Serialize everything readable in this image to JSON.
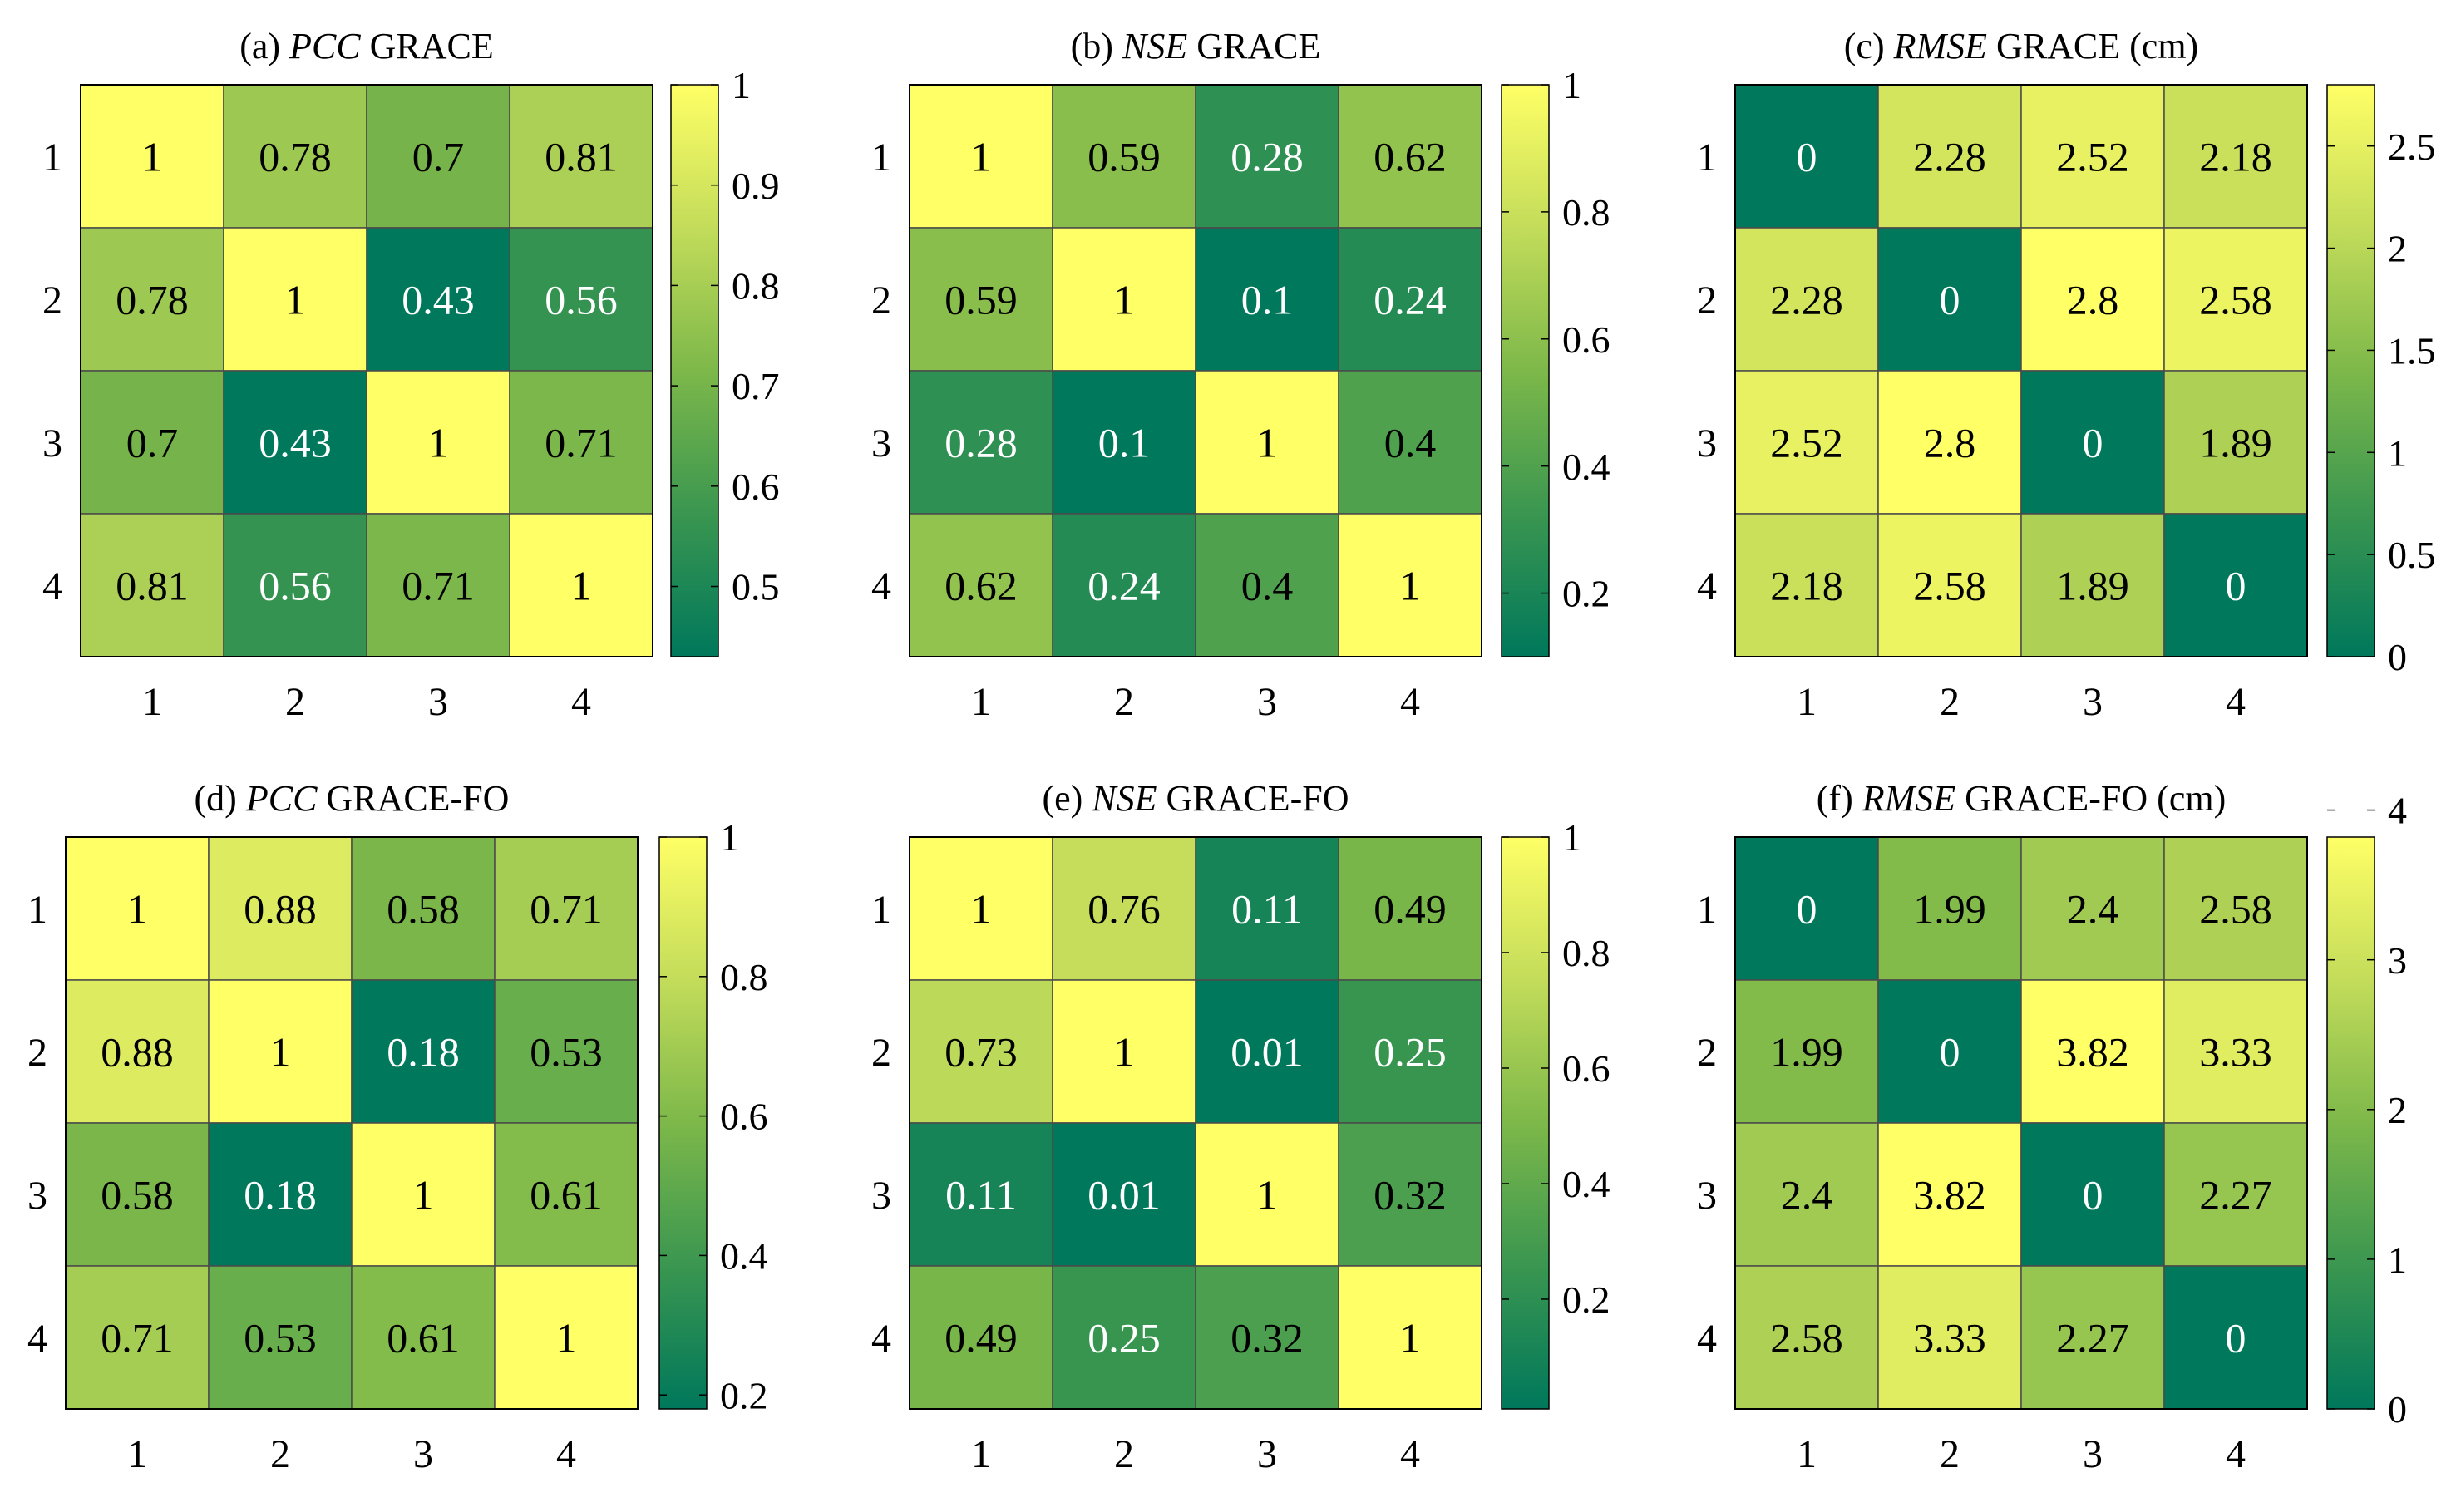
{
  "chart_data": [
    {
      "type": "heatmap",
      "panel": "(a)",
      "metric": "PCC",
      "suffix": "GRACE",
      "x_labels": [
        "1",
        "2",
        "3",
        "4"
      ],
      "y_labels": [
        "1",
        "2",
        "3",
        "4"
      ],
      "matrix": [
        [
          1,
          0.78,
          0.7,
          0.81
        ],
        [
          0.78,
          1,
          0.43,
          0.56
        ],
        [
          0.7,
          0.43,
          1,
          0.71
        ],
        [
          0.81,
          0.56,
          0.71,
          1
        ]
      ],
      "cell_labels": [
        [
          "1",
          "0.78",
          "0.7",
          "0.81"
        ],
        [
          "0.78",
          "1",
          "0.43",
          "0.56"
        ],
        [
          "0.7",
          "0.43",
          "1",
          "0.71"
        ],
        [
          "0.81",
          "0.56",
          "0.71",
          "1"
        ]
      ],
      "clim": [
        0.43,
        1
      ],
      "colorbar_ticks": [
        0.5,
        0.6,
        0.7,
        0.8,
        0.9,
        1
      ],
      "colorbar_tick_labels": [
        "0.5",
        "0.6",
        "0.7",
        "0.8",
        "0.9",
        "1"
      ]
    },
    {
      "type": "heatmap",
      "panel": "(b)",
      "metric": "NSE",
      "suffix": "GRACE",
      "x_labels": [
        "1",
        "2",
        "3",
        "4"
      ],
      "y_labels": [
        "1",
        "2",
        "3",
        "4"
      ],
      "matrix": [
        [
          1,
          0.59,
          0.28,
          0.62
        ],
        [
          0.59,
          1,
          0.1,
          0.24
        ],
        [
          0.28,
          0.1,
          1,
          0.4
        ],
        [
          0.62,
          0.24,
          0.4,
          1
        ]
      ],
      "cell_labels": [
        [
          "1",
          "0.59",
          "0.28",
          "0.62"
        ],
        [
          "0.59",
          "1",
          "0.1",
          "0.24"
        ],
        [
          "0.28",
          "0.1",
          "1",
          "0.4"
        ],
        [
          "0.62",
          "0.24",
          "0.4",
          "1"
        ]
      ],
      "clim": [
        0.1,
        1
      ],
      "colorbar_ticks": [
        0.2,
        0.4,
        0.6,
        0.8,
        1
      ],
      "colorbar_tick_labels": [
        "0.2",
        "0.4",
        "0.6",
        "0.8",
        "1"
      ]
    },
    {
      "type": "heatmap",
      "panel": "(c)",
      "metric": "RMSE",
      "suffix": "GRACE (cm)",
      "x_labels": [
        "1",
        "2",
        "3",
        "4"
      ],
      "y_labels": [
        "1",
        "2",
        "3",
        "4"
      ],
      "matrix": [
        [
          0,
          2.28,
          2.52,
          2.18
        ],
        [
          2.28,
          0,
          2.8,
          2.58
        ],
        [
          2.52,
          2.8,
          0,
          1.89
        ],
        [
          2.18,
          2.58,
          1.89,
          0
        ]
      ],
      "cell_labels": [
        [
          "0",
          "2.28",
          "2.52",
          "2.18"
        ],
        [
          "2.28",
          "0",
          "2.8",
          "2.58"
        ],
        [
          "2.52",
          "2.8",
          "0",
          "1.89"
        ],
        [
          "2.18",
          "2.58",
          "1.89",
          "0"
        ]
      ],
      "clim": [
        0,
        2.8
      ],
      "colorbar_ticks": [
        0,
        0.5,
        1,
        1.5,
        2,
        2.5
      ],
      "colorbar_tick_labels": [
        "0",
        "0.5",
        "1",
        "1.5",
        "2",
        "2.5"
      ]
    },
    {
      "type": "heatmap",
      "panel": "(d)",
      "metric": "PCC",
      "suffix": "GRACE-FO",
      "x_labels": [
        "1",
        "2",
        "3",
        "4"
      ],
      "y_labels": [
        "1",
        "2",
        "3",
        "4"
      ],
      "matrix": [
        [
          1,
          0.88,
          0.58,
          0.71
        ],
        [
          0.88,
          1,
          0.18,
          0.53
        ],
        [
          0.58,
          0.18,
          1,
          0.61
        ],
        [
          0.71,
          0.53,
          0.61,
          1
        ]
      ],
      "cell_labels": [
        [
          "1",
          "0.88",
          "0.58",
          "0.71"
        ],
        [
          "0.88",
          "1",
          "0.18",
          "0.53"
        ],
        [
          "0.58",
          "0.18",
          "1",
          "0.61"
        ],
        [
          "0.71",
          "0.53",
          "0.61",
          "1"
        ]
      ],
      "clim": [
        0.18,
        1
      ],
      "colorbar_ticks": [
        0.2,
        0.4,
        0.6,
        0.8,
        1
      ],
      "colorbar_tick_labels": [
        "0.2",
        "0.4",
        "0.6",
        "0.8",
        "1"
      ]
    },
    {
      "type": "heatmap",
      "panel": "(e)",
      "metric": "NSE",
      "suffix": "GRACE-FO",
      "x_labels": [
        "1",
        "2",
        "3",
        "4"
      ],
      "y_labels": [
        "1",
        "2",
        "3",
        "4"
      ],
      "matrix": [
        [
          1,
          0.76,
          0.11,
          0.49
        ],
        [
          0.73,
          1,
          0.01,
          0.25
        ],
        [
          0.11,
          0.01,
          1,
          0.32
        ],
        [
          0.49,
          0.25,
          0.32,
          1
        ]
      ],
      "cell_labels": [
        [
          "1",
          "0.76",
          "0.11",
          "0.49"
        ],
        [
          "0.73",
          "1",
          "0.01",
          "0.25"
        ],
        [
          "0.11",
          "0.01",
          "1",
          "0.32"
        ],
        [
          "0.49",
          "0.25",
          "0.32",
          "1"
        ]
      ],
      "clim": [
        0.01,
        1
      ],
      "colorbar_ticks": [
        0.2,
        0.4,
        0.6,
        0.8,
        1
      ],
      "colorbar_tick_labels": [
        "0.2",
        "0.4",
        "0.6",
        "0.8",
        "1"
      ]
    },
    {
      "type": "heatmap",
      "panel": "(f)",
      "metric": "RMSE",
      "suffix": "GRACE-FO (cm)",
      "x_labels": [
        "1",
        "2",
        "3",
        "4"
      ],
      "y_labels": [
        "1",
        "2",
        "3",
        "4"
      ],
      "matrix": [
        [
          0,
          1.99,
          2.4,
          2.58
        ],
        [
          1.99,
          0,
          3.82,
          3.33
        ],
        [
          2.4,
          3.82,
          0,
          2.27
        ],
        [
          2.58,
          3.33,
          2.27,
          0
        ]
      ],
      "cell_labels": [
        [
          "0",
          "1.99",
          "2.4",
          "2.58"
        ],
        [
          "1.99",
          "0",
          "3.82",
          "3.33"
        ],
        [
          "2.4",
          "3.82",
          "0",
          "2.27"
        ],
        [
          "2.58",
          "3.33",
          "2.27",
          "0"
        ]
      ],
      "clim": [
        0,
        3.82
      ],
      "colorbar_ticks": [
        0,
        1,
        2,
        3,
        4
      ],
      "colorbar_tick_labels": [
        "0",
        "1",
        "2",
        "3",
        "4"
      ]
    }
  ],
  "colormap": [
    "#00785b",
    "#3a9650",
    "#7db84a",
    "#c3dc5a",
    "#ffff66"
  ],
  "colors": {
    "grid_line": "#4a4a4a",
    "frame_line": "#000000",
    "text_dark": "#000000",
    "text_light": "#ffffff",
    "axis_text": "#000000"
  }
}
